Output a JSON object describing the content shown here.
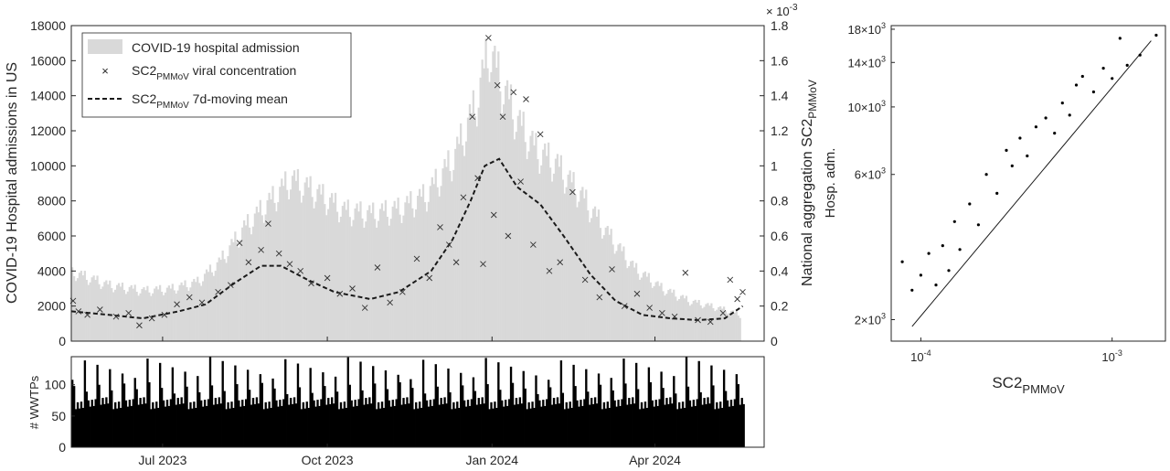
{
  "chart_data": [
    {
      "type": "area",
      "ylabel_left": "COVID-19 Hospital admissions in US",
      "ylabel_right_main": "National aggregation SC2",
      "ylabel_right_sub": "PMMoV",
      "exponent_main": "× 10",
      "exponent_power": "-3",
      "x_range": [
        "2023-05-11",
        "2024-06-01"
      ],
      "x_ticks": [
        {
          "date": "2023-07-01",
          "label": "Jul 2023"
        },
        {
          "date": "2023-10-01",
          "label": "Oct 2023"
        },
        {
          "date": "2024-01-01",
          "label": "Jan 2024"
        },
        {
          "date": "2024-04-01",
          "label": "Apr 2024"
        }
      ],
      "ylim_left": [
        0,
        18000
      ],
      "yticks_left": [
        "0",
        "2000",
        "4000",
        "6000",
        "8000",
        "10000",
        "12000",
        "14000",
        "16000",
        "18000"
      ],
      "ylim_right": [
        0,
        1.8
      ],
      "yticks_right": [
        "0",
        "0.2",
        "0.4",
        "0.6",
        "0.8",
        "1",
        "1.2",
        "1.4",
        "1.6",
        "1.8"
      ],
      "legend_position": "top-left",
      "legend": [
        {
          "text": "COVID-19 hospital admission",
          "sub": "",
          "rest": ""
        },
        {
          "text": "SC2",
          "sub": "PMMoV",
          "rest": " viral concentration"
        },
        {
          "text": "SC2",
          "sub": "PMMoV",
          "rest": " 7d-moving mean"
        }
      ],
      "hospital_admissions_weekly": [
        {
          "date": "2023-05-13",
          "value": 3900
        },
        {
          "date": "2023-06-01",
          "value": 3200
        },
        {
          "date": "2023-06-20",
          "value": 2900
        },
        {
          "date": "2023-07-05",
          "value": 3000
        },
        {
          "date": "2023-07-20",
          "value": 3400
        },
        {
          "date": "2023-08-01",
          "value": 4500
        },
        {
          "date": "2023-08-15",
          "value": 6500
        },
        {
          "date": "2023-09-01",
          "value": 8300
        },
        {
          "date": "2023-09-10",
          "value": 9300
        },
        {
          "date": "2023-09-25",
          "value": 8500
        },
        {
          "date": "2023-10-10",
          "value": 7500
        },
        {
          "date": "2023-10-25",
          "value": 7300
        },
        {
          "date": "2023-11-10",
          "value": 7600
        },
        {
          "date": "2023-11-25",
          "value": 8400
        },
        {
          "date": "2023-12-10",
          "value": 10500
        },
        {
          "date": "2023-12-22",
          "value": 13500
        },
        {
          "date": "2023-12-30",
          "value": 16800
        },
        {
          "date": "2024-01-05",
          "value": 15000
        },
        {
          "date": "2024-01-15",
          "value": 12600
        },
        {
          "date": "2024-01-25",
          "value": 11000
        },
        {
          "date": "2024-02-05",
          "value": 10200
        },
        {
          "date": "2024-02-20",
          "value": 8300
        },
        {
          "date": "2024-03-05",
          "value": 6200
        },
        {
          "date": "2024-03-20",
          "value": 4200
        },
        {
          "date": "2024-04-05",
          "value": 3000
        },
        {
          "date": "2024-04-20",
          "value": 2300
        },
        {
          "date": "2024-05-10",
          "value": 1800
        },
        {
          "date": "2024-05-18",
          "value": 1500
        }
      ],
      "viral_concentration_points": [
        {
          "date": "2023-05-12",
          "value": 0.23
        },
        {
          "date": "2023-05-15",
          "value": 0.17
        },
        {
          "date": "2023-05-20",
          "value": 0.15
        },
        {
          "date": "2023-05-27",
          "value": 0.18
        },
        {
          "date": "2023-06-05",
          "value": 0.14
        },
        {
          "date": "2023-06-12",
          "value": 0.16
        },
        {
          "date": "2023-06-18",
          "value": 0.09
        },
        {
          "date": "2023-06-25",
          "value": 0.13
        },
        {
          "date": "2023-07-02",
          "value": 0.15
        },
        {
          "date": "2023-07-09",
          "value": 0.21
        },
        {
          "date": "2023-07-16",
          "value": 0.25
        },
        {
          "date": "2023-07-23",
          "value": 0.22
        },
        {
          "date": "2023-08-01",
          "value": 0.28
        },
        {
          "date": "2023-08-08",
          "value": 0.32
        },
        {
          "date": "2023-08-13",
          "value": 0.56
        },
        {
          "date": "2023-08-18",
          "value": 0.45
        },
        {
          "date": "2023-08-25",
          "value": 0.52
        },
        {
          "date": "2023-08-29",
          "value": 0.67
        },
        {
          "date": "2023-09-04",
          "value": 0.5
        },
        {
          "date": "2023-09-10",
          "value": 0.44
        },
        {
          "date": "2023-09-16",
          "value": 0.4
        },
        {
          "date": "2023-09-22",
          "value": 0.33
        },
        {
          "date": "2023-10-01",
          "value": 0.36
        },
        {
          "date": "2023-10-08",
          "value": 0.27
        },
        {
          "date": "2023-10-15",
          "value": 0.3
        },
        {
          "date": "2023-10-22",
          "value": 0.19
        },
        {
          "date": "2023-10-29",
          "value": 0.42
        },
        {
          "date": "2023-11-05",
          "value": 0.22
        },
        {
          "date": "2023-11-12",
          "value": 0.28
        },
        {
          "date": "2023-11-20",
          "value": 0.47
        },
        {
          "date": "2023-11-27",
          "value": 0.36
        },
        {
          "date": "2023-12-03",
          "value": 0.65
        },
        {
          "date": "2023-12-08",
          "value": 0.55
        },
        {
          "date": "2023-12-12",
          "value": 0.45
        },
        {
          "date": "2023-12-16",
          "value": 0.82
        },
        {
          "date": "2023-12-21",
          "value": 1.28
        },
        {
          "date": "2023-12-24",
          "value": 0.93
        },
        {
          "date": "2023-12-27",
          "value": 0.44
        },
        {
          "date": "2023-12-30",
          "value": 1.73
        },
        {
          "date": "2024-01-02",
          "value": 0.72
        },
        {
          "date": "2024-01-04",
          "value": 1.46
        },
        {
          "date": "2024-01-07",
          "value": 1.28
        },
        {
          "date": "2024-01-10",
          "value": 0.6
        },
        {
          "date": "2024-01-13",
          "value": 1.42
        },
        {
          "date": "2024-01-17",
          "value": 0.91
        },
        {
          "date": "2024-01-20",
          "value": 1.38
        },
        {
          "date": "2024-01-24",
          "value": 0.55
        },
        {
          "date": "2024-01-28",
          "value": 1.18
        },
        {
          "date": "2024-02-02",
          "value": 0.4
        },
        {
          "date": "2024-02-08",
          "value": 0.45
        },
        {
          "date": "2024-02-15",
          "value": 0.85
        },
        {
          "date": "2024-02-22",
          "value": 0.35
        },
        {
          "date": "2024-03-01",
          "value": 0.25
        },
        {
          "date": "2024-03-08",
          "value": 0.41
        },
        {
          "date": "2024-03-15",
          "value": 0.2
        },
        {
          "date": "2024-03-22",
          "value": 0.27
        },
        {
          "date": "2024-03-29",
          "value": 0.19
        },
        {
          "date": "2024-04-05",
          "value": 0.16
        },
        {
          "date": "2024-04-12",
          "value": 0.14
        },
        {
          "date": "2024-04-18",
          "value": 0.39
        },
        {
          "date": "2024-04-25",
          "value": 0.12
        },
        {
          "date": "2024-05-02",
          "value": 0.11
        },
        {
          "date": "2024-05-09",
          "value": 0.16
        },
        {
          "date": "2024-05-13",
          "value": 0.35
        },
        {
          "date": "2024-05-17",
          "value": 0.24
        },
        {
          "date": "2024-05-20",
          "value": 0.28
        }
      ],
      "moving_mean_7d": [
        {
          "date": "2023-05-11",
          "value": 0.17
        },
        {
          "date": "2023-06-01",
          "value": 0.15
        },
        {
          "date": "2023-06-20",
          "value": 0.13
        },
        {
          "date": "2023-07-10",
          "value": 0.17
        },
        {
          "date": "2023-07-25",
          "value": 0.21
        },
        {
          "date": "2023-08-10",
          "value": 0.33
        },
        {
          "date": "2023-08-25",
          "value": 0.43
        },
        {
          "date": "2023-09-05",
          "value": 0.43
        },
        {
          "date": "2023-09-20",
          "value": 0.35
        },
        {
          "date": "2023-10-05",
          "value": 0.28
        },
        {
          "date": "2023-10-25",
          "value": 0.24
        },
        {
          "date": "2023-11-10",
          "value": 0.28
        },
        {
          "date": "2023-11-28",
          "value": 0.4
        },
        {
          "date": "2023-12-10",
          "value": 0.58
        },
        {
          "date": "2023-12-20",
          "value": 0.8
        },
        {
          "date": "2023-12-28",
          "value": 1.0
        },
        {
          "date": "2024-01-05",
          "value": 1.04
        },
        {
          "date": "2024-01-15",
          "value": 0.88
        },
        {
          "date": "2024-01-28",
          "value": 0.78
        },
        {
          "date": "2024-02-10",
          "value": 0.6
        },
        {
          "date": "2024-02-25",
          "value": 0.38
        },
        {
          "date": "2024-03-10",
          "value": 0.23
        },
        {
          "date": "2024-03-25",
          "value": 0.15
        },
        {
          "date": "2024-04-10",
          "value": 0.13
        },
        {
          "date": "2024-04-25",
          "value": 0.12
        },
        {
          "date": "2024-05-10",
          "value": 0.13
        },
        {
          "date": "2024-05-20",
          "value": 0.2
        }
      ]
    },
    {
      "type": "bar",
      "ylabel": "# WWTPs",
      "ylim": [
        0,
        145
      ],
      "yticks": [
        "0",
        "50",
        "100"
      ],
      "x_range": [
        "2023-05-11",
        "2024-06-01"
      ],
      "last_date": "2024-05-20",
      "peaks_range": [
        108,
        145
      ],
      "base_range": [
        60,
        80
      ]
    },
    {
      "type": "scatter",
      "xlabel": "SC2",
      "xlabel_sub": "PMMoV",
      "ylabel": "Hosp. adm.",
      "x_scale": "log",
      "y_scale": "log",
      "xlim": [
        7e-05,
        0.0019
      ],
      "ylim": [
        1700,
        18500
      ],
      "xticks": [
        {
          "value": 0.0001,
          "base": "10",
          "exp": "-4"
        },
        {
          "value": 0.001,
          "base": "10",
          "exp": "-3"
        }
      ],
      "yticks": [
        {
          "value": 2000,
          "base": "2×10",
          "exp": "3"
        },
        {
          "value": 6000,
          "base": "6×10",
          "exp": "3"
        },
        {
          "value": 10000,
          "base": "10×10",
          "exp": "3"
        },
        {
          "value": 14000,
          "base": "14×10",
          "exp": "3"
        },
        {
          "value": 18000,
          "base": "18×10",
          "exp": "3"
        }
      ],
      "fit_line": [
        {
          "x": 9e-05,
          "y": 1900
        },
        {
          "x": 0.0016,
          "y": 16500
        }
      ],
      "points": [
        {
          "x": 8e-05,
          "y": 3100
        },
        {
          "x": 9e-05,
          "y": 2500
        },
        {
          "x": 0.0001,
          "y": 2800
        },
        {
          "x": 0.00011,
          "y": 3300
        },
        {
          "x": 0.00012,
          "y": 2600
        },
        {
          "x": 0.00013,
          "y": 3500
        },
        {
          "x": 0.00014,
          "y": 2900
        },
        {
          "x": 0.00015,
          "y": 4200
        },
        {
          "x": 0.00016,
          "y": 3400
        },
        {
          "x": 0.00018,
          "y": 4800
        },
        {
          "x": 0.0002,
          "y": 4100
        },
        {
          "x": 0.00022,
          "y": 6000
        },
        {
          "x": 0.00025,
          "y": 5200
        },
        {
          "x": 0.00028,
          "y": 7200
        },
        {
          "x": 0.0003,
          "y": 6400
        },
        {
          "x": 0.00033,
          "y": 7900
        },
        {
          "x": 0.00036,
          "y": 6900
        },
        {
          "x": 0.0004,
          "y": 8600
        },
        {
          "x": 0.00045,
          "y": 9200
        },
        {
          "x": 0.0005,
          "y": 8200
        },
        {
          "x": 0.00055,
          "y": 10300
        },
        {
          "x": 0.0006,
          "y": 9400
        },
        {
          "x": 0.00065,
          "y": 11800
        },
        {
          "x": 0.0007,
          "y": 12600
        },
        {
          "x": 0.0008,
          "y": 11200
        },
        {
          "x": 0.0009,
          "y": 13400
        },
        {
          "x": 0.001,
          "y": 12400
        },
        {
          "x": 0.0011,
          "y": 16800
        },
        {
          "x": 0.0012,
          "y": 13700
        },
        {
          "x": 0.0014,
          "y": 14800
        },
        {
          "x": 0.0017,
          "y": 17200
        }
      ]
    }
  ]
}
